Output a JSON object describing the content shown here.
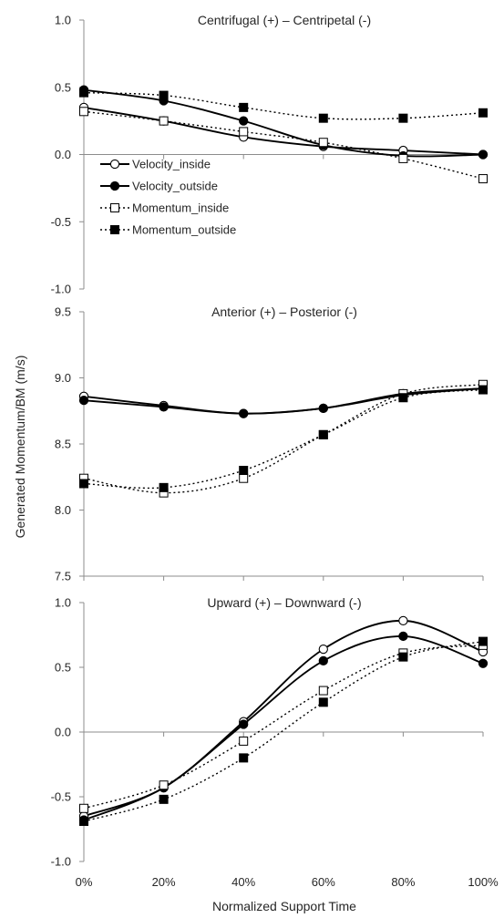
{
  "chart_data": {
    "type": "line",
    "ylabel": "Generated Momentum/BM (m/s)",
    "xlabel": "Normalized Support Time",
    "categories": [
      "0%",
      "20%",
      "40%",
      "60%",
      "80%",
      "100%"
    ],
    "x": [
      0,
      20,
      40,
      60,
      80,
      100
    ],
    "legend": {
      "placement": "inside top panel, left",
      "entries": [
        "Velocity_inside",
        "Velocity_outside",
        "Momentum_inside",
        "Momentum_outside"
      ]
    },
    "panels": [
      {
        "title": "Centrifugal (+) – Centripetal (-)",
        "ylim": [
          -1.0,
          1.0
        ],
        "yticks": [
          "1.0",
          "0.5",
          "0.0",
          "-0.5",
          "-1.0"
        ],
        "ytick_values": [
          1.0,
          0.5,
          0.0,
          -0.5,
          -1.0
        ],
        "series": [
          {
            "name": "Velocity_inside",
            "values": [
              0.35,
              0.25,
              0.13,
              0.06,
              0.03,
              0.0
            ]
          },
          {
            "name": "Velocity_outside",
            "values": [
              0.48,
              0.4,
              0.25,
              0.07,
              -0.01,
              0.0
            ]
          },
          {
            "name": "Momentum_inside",
            "values": [
              0.32,
              0.25,
              0.17,
              0.09,
              -0.03,
              -0.18
            ]
          },
          {
            "name": "Momentum_outside",
            "values": [
              0.46,
              0.44,
              0.35,
              0.27,
              0.27,
              0.31
            ]
          }
        ]
      },
      {
        "title": "Anterior (+) – Posterior (-)",
        "ylim": [
          7.5,
          9.5
        ],
        "yticks": [
          "9.5",
          "9.0",
          "8.5",
          "8.0",
          "7.5"
        ],
        "ytick_values": [
          9.5,
          9.0,
          8.5,
          8.0,
          7.5
        ],
        "series": [
          {
            "name": "Velocity_inside",
            "values": [
              8.86,
              8.79,
              8.73,
              8.77,
              8.88,
              8.92
            ]
          },
          {
            "name": "Velocity_outside",
            "values": [
              8.83,
              8.78,
              8.73,
              8.77,
              8.87,
              8.92
            ]
          },
          {
            "name": "Momentum_inside",
            "values": [
              8.24,
              8.13,
              8.24,
              8.57,
              8.88,
              8.95
            ]
          },
          {
            "name": "Momentum_outside",
            "values": [
              8.2,
              8.17,
              8.3,
              8.57,
              8.85,
              8.91
            ]
          }
        ]
      },
      {
        "title": "Upward (+) – Downward (-)",
        "ylim": [
          -1.0,
          1.0
        ],
        "yticks": [
          "1.0",
          "0.5",
          "0.0",
          "-0.5",
          "-1.0"
        ],
        "ytick_values": [
          1.0,
          0.5,
          0.0,
          -0.5,
          -1.0
        ],
        "series": [
          {
            "name": "Velocity_inside",
            "values": [
              -0.65,
              -0.43,
              0.08,
              0.64,
              0.86,
              0.62
            ]
          },
          {
            "name": "Velocity_outside",
            "values": [
              -0.68,
              -0.43,
              0.06,
              0.55,
              0.74,
              0.53
            ]
          },
          {
            "name": "Momentum_inside",
            "values": [
              -0.59,
              -0.41,
              -0.07,
              0.32,
              0.61,
              0.67
            ]
          },
          {
            "name": "Momentum_outside",
            "values": [
              -0.69,
              -0.52,
              -0.2,
              0.23,
              0.58,
              0.7
            ]
          }
        ]
      }
    ]
  }
}
